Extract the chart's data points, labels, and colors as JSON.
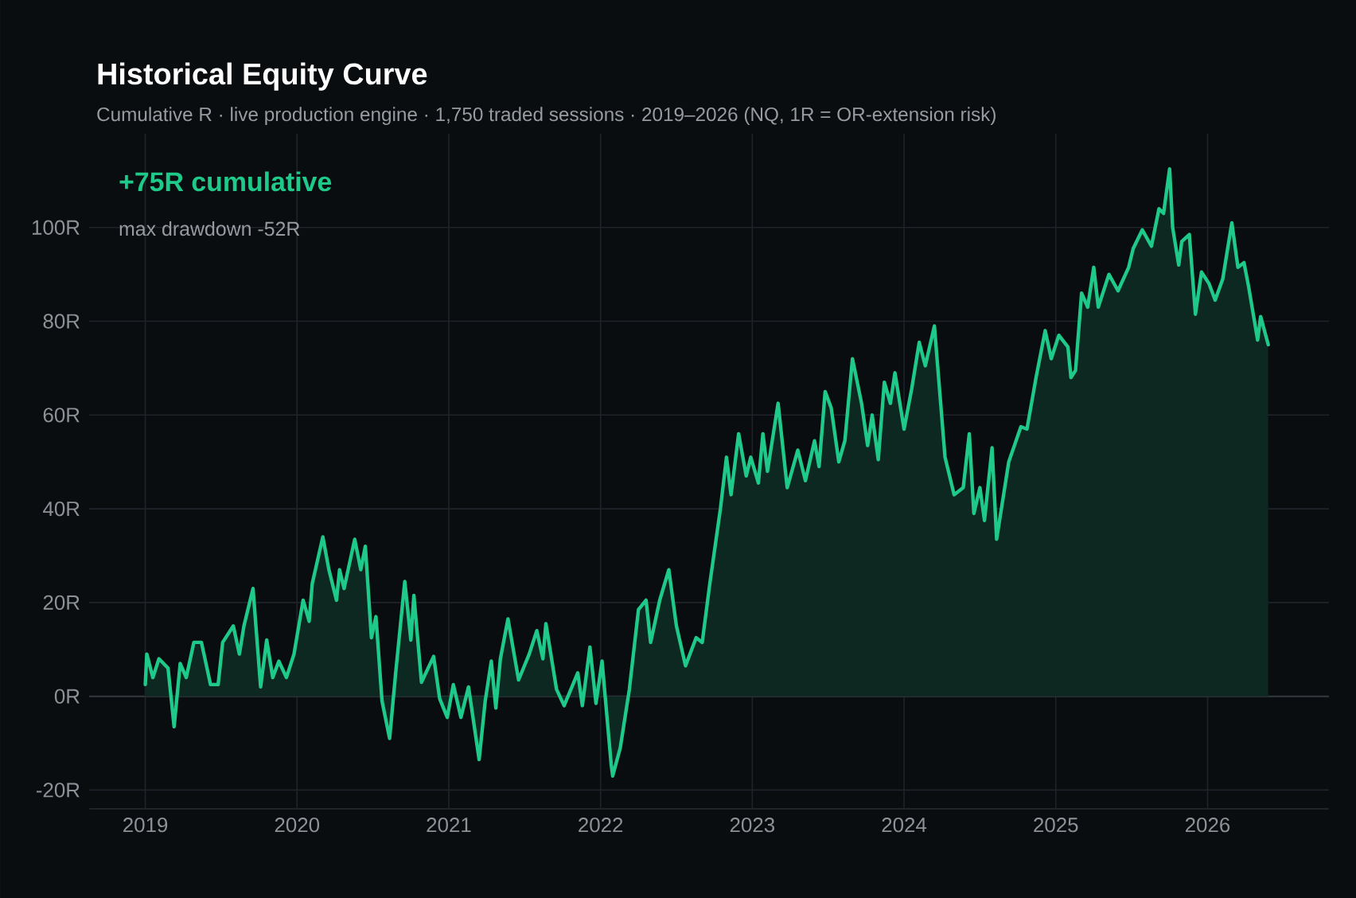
{
  "chart_data": {
    "type": "area",
    "title": "Historical Equity Curve",
    "subtitle": "Cumulative R · live production engine · 1,750 traded sessions · 2019–2026 (NQ, 1R = OR-extension risk)",
    "annotations": [
      "+75R cumulative",
      "max drawdown -52R"
    ],
    "xlim": [
      2018.63,
      2026.8
    ],
    "xticks": [
      2019,
      2020,
      2021,
      2022,
      2023,
      2024,
      2025,
      2026
    ],
    "ylim": [
      -24,
      120
    ],
    "yticks": [
      {
        "value": -20,
        "label": "-20R"
      },
      {
        "value": 0,
        "label": "0R"
      },
      {
        "value": 20,
        "label": "20R"
      },
      {
        "value": 40,
        "label": "40R"
      },
      {
        "value": 60,
        "label": "60R"
      },
      {
        "value": 80,
        "label": "80R"
      },
      {
        "value": 100,
        "label": "100R"
      }
    ],
    "grid": true,
    "series": [
      {
        "color": "#1ec98a",
        "x": [
          2019.0,
          2019.01,
          2019.05,
          2019.09,
          2019.15,
          2019.19,
          2019.23,
          2019.27,
          2019.32,
          2019.37,
          2019.43,
          2019.48,
          2019.51,
          2019.58,
          2019.62,
          2019.65,
          2019.71,
          2019.76,
          2019.8,
          2019.84,
          2019.88,
          2019.93,
          2019.98,
          2020.04,
          2020.08,
          2020.1,
          2020.17,
          2020.21,
          2020.26,
          2020.28,
          2020.31,
          2020.38,
          2020.42,
          2020.45,
          2020.49,
          2020.52,
          2020.56,
          2020.61,
          2020.65,
          2020.71,
          2020.75,
          2020.77,
          2020.82,
          2020.9,
          2020.94,
          2020.99,
          2021.03,
          2021.08,
          2021.13,
          2021.2,
          2021.24,
          2021.28,
          2021.31,
          2021.34,
          2021.39,
          2021.46,
          2021.53,
          2021.58,
          2021.62,
          2021.64,
          2021.71,
          2021.76,
          2021.85,
          2021.88,
          2021.93,
          2021.97,
          2022.01,
          2022.07,
          2022.08,
          2022.13,
          2022.19,
          2022.25,
          2022.3,
          2022.33,
          2022.39,
          2022.45,
          2022.5,
          2022.56,
          2022.63,
          2022.67,
          2022.72,
          2022.79,
          2022.83,
          2022.86,
          2022.91,
          2022.96,
          2022.99,
          2023.04,
          2023.07,
          2023.1,
          2023.17,
          2023.23,
          2023.3,
          2023.35,
          2023.41,
          2023.44,
          2023.48,
          2023.52,
          2023.57,
          2023.61,
          2023.66,
          2023.72,
          2023.76,
          2023.79,
          2023.83,
          2023.87,
          2023.91,
          2023.94,
          2024.0,
          2024.05,
          2024.1,
          2024.14,
          2024.2,
          2024.27,
          2024.33,
          2024.39,
          2024.43,
          2024.46,
          2024.5,
          2024.53,
          2024.58,
          2024.61,
          2024.69,
          2024.77,
          2024.81,
          2024.87,
          2024.93,
          2024.97,
          2025.02,
          2025.08,
          2025.1,
          2025.13,
          2025.17,
          2025.21,
          2025.25,
          2025.28,
          2025.35,
          2025.41,
          2025.48,
          2025.51,
          2025.57,
          2025.63,
          2025.68,
          2025.71,
          2025.75,
          2025.77,
          2025.81,
          2025.83,
          2025.88,
          2025.92,
          2025.96,
          2026.01,
          2026.05,
          2026.1,
          2026.16,
          2026.2,
          2026.24,
          2026.27,
          2026.33,
          2026.35,
          2026.4
        ],
        "values": [
          2.5,
          9,
          4,
          8,
          6,
          -6.5,
          7,
          4,
          11.5,
          11.5,
          2.5,
          2.5,
          11.5,
          15,
          9,
          15,
          23,
          2,
          12,
          4,
          7.5,
          4,
          9,
          20.5,
          16,
          24,
          34,
          27,
          20.5,
          27,
          23,
          33.5,
          27,
          32,
          12.5,
          17,
          -1,
          -9,
          5,
          24.5,
          12,
          21.5,
          3,
          8.5,
          -0.5,
          -4.5,
          2.5,
          -4.5,
          2,
          -13.5,
          -1,
          7.5,
          -2.5,
          8,
          16.5,
          3.5,
          9,
          14,
          8,
          15.5,
          1.5,
          -2,
          5,
          -2,
          10.5,
          -1.5,
          7.5,
          -14.5,
          -17,
          -11,
          1.5,
          18.5,
          20.5,
          11.5,
          20.5,
          27,
          15,
          6.5,
          12.5,
          11.5,
          24,
          40,
          51,
          43,
          56,
          47,
          51,
          45.5,
          56,
          48,
          62.5,
          44.5,
          52.5,
          46,
          54.5,
          49,
          65,
          61.5,
          50,
          54.5,
          72,
          62.5,
          53.5,
          60,
          50.5,
          67,
          62.5,
          69,
          57,
          65.5,
          75.5,
          70.5,
          79,
          51,
          43,
          44.5,
          56,
          39,
          44.5,
          37.5,
          53,
          33.5,
          50,
          57.5,
          57,
          68,
          78,
          72,
          77,
          74.5,
          68,
          69.5,
          86,
          83,
          91.5,
          83,
          90,
          86.5,
          91.5,
          95.5,
          99.5,
          96,
          104,
          103,
          112.5,
          100,
          92,
          97,
          98.5,
          81.5,
          90.5,
          88,
          84.5,
          89,
          101,
          91.5,
          92.5,
          87.5,
          76,
          81,
          75
        ]
      }
    ]
  }
}
